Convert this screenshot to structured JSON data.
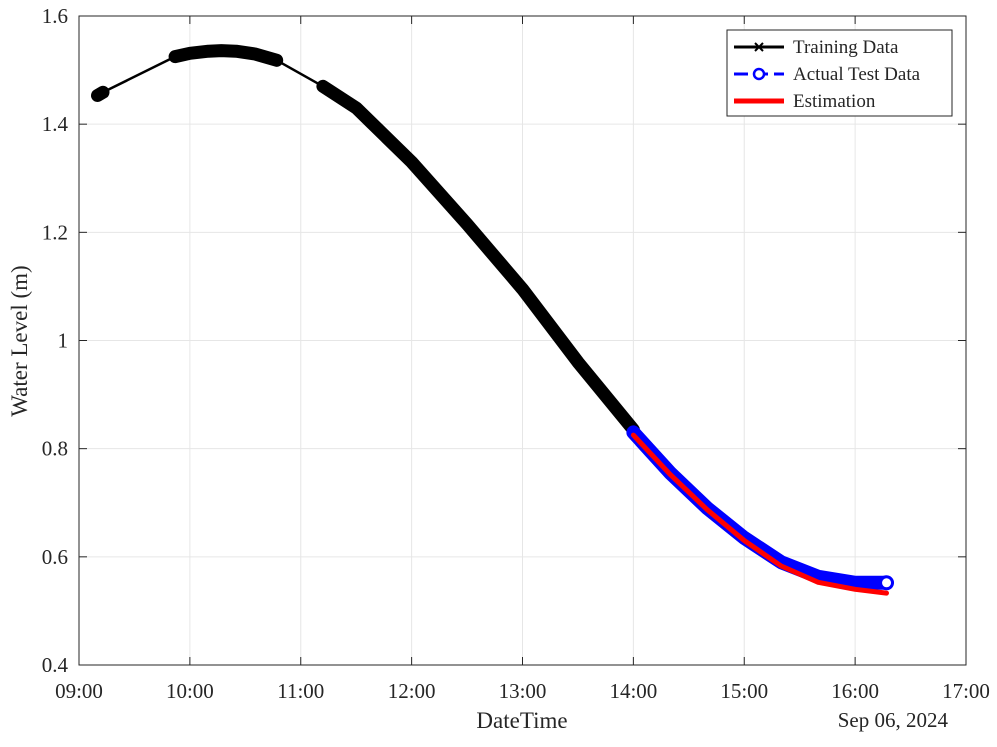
{
  "chart_data": {
    "type": "line",
    "xlabel": "DateTime",
    "ylabel": "Water Level (m)",
    "date_label": "Sep 06, 2024",
    "xlim": [
      "09:00",
      "17:00"
    ],
    "ylim": [
      0.4,
      1.6
    ],
    "x_ticks": [
      "09:00",
      "10:00",
      "11:00",
      "12:00",
      "13:00",
      "14:00",
      "15:00",
      "16:00",
      "17:00"
    ],
    "y_ticks": [
      "0.4",
      "0.6",
      "0.8",
      "1",
      "1.2",
      "1.4",
      "1.6"
    ],
    "grid": true,
    "legend_position": "top-right",
    "series": [
      {
        "name": "Training Data",
        "color": "#000000",
        "marker": "x",
        "segments": [
          {
            "x": [
              "09:10",
              "09:13"
            ],
            "y": [
              1.453,
              1.459
            ]
          },
          {
            "x": [
              "09:52",
              "10:00",
              "10:10",
              "10:17",
              "10:25",
              "10:35",
              "10:47"
            ],
            "y": [
              1.525,
              1.531,
              1.535,
              1.536,
              1.535,
              1.53,
              1.518
            ]
          },
          {
            "x": [
              "11:12",
              "11:30",
              "12:00",
              "12:30",
              "13:00",
              "13:30",
              "14:00"
            ],
            "y": [
              1.47,
              1.43,
              1.33,
              1.215,
              1.095,
              0.96,
              0.835
            ]
          }
        ],
        "bridges": [
          {
            "x": [
              "09:13",
              "09:52"
            ],
            "y": [
              1.459,
              1.525
            ]
          },
          {
            "x": [
              "10:47",
              "11:12"
            ],
            "y": [
              1.518,
              1.47
            ]
          }
        ]
      },
      {
        "name": "Actual Test Data",
        "color": "#0000ff",
        "marker": "o",
        "x": [
          "14:00",
          "14:20",
          "14:40",
          "15:00",
          "15:20",
          "15:40",
          "16:00",
          "16:17"
        ],
        "y": [
          0.83,
          0.755,
          0.69,
          0.635,
          0.59,
          0.563,
          0.552,
          0.552
        ]
      },
      {
        "name": "Estimation",
        "color": "#ff0000",
        "x": [
          "14:00",
          "14:20",
          "14:40",
          "15:00",
          "15:20",
          "15:40",
          "16:00",
          "16:17"
        ],
        "y": [
          0.825,
          0.752,
          0.687,
          0.63,
          0.583,
          0.553,
          0.54,
          0.533
        ]
      }
    ]
  }
}
